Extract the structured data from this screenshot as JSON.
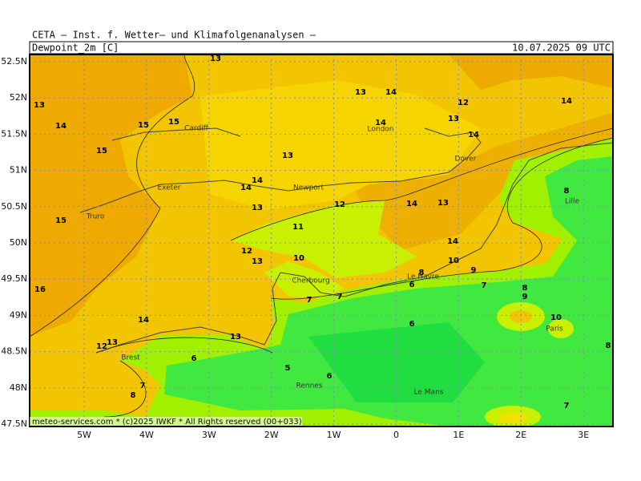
{
  "header": {
    "title": "CETA — Inst. f. Wetter— und Klimafolgenanalysen —",
    "variable": "Dewpoint_2m [C]",
    "valid_time": "10.07.2025 09 UTC"
  },
  "footer": "meteo-services.com * (c)2025 IWKF * All Rights reserved (00+033)",
  "map": {
    "lat_labels": [
      "52.5N",
      "52N",
      "51.5N",
      "51N",
      "50.5N",
      "50N",
      "49.5N",
      "49N",
      "48.5N",
      "48N",
      "47.5N"
    ],
    "lon_labels": [
      "5W",
      "4W",
      "3W",
      "2W",
      "1W",
      "0",
      "1E",
      "2E",
      "3E"
    ],
    "places": [
      "Cardiff",
      "London",
      "Dover",
      "Exeter",
      "Newport",
      "Truro",
      "Lille",
      "Cherbourg",
      "Le Havre",
      "Paris",
      "Brest",
      "Rennes",
      "Le Mans"
    ],
    "contour_labels": [
      13,
      13,
      14,
      15,
      15,
      13,
      14,
      12,
      13,
      14,
      14,
      14,
      15,
      13,
      14,
      14,
      13,
      12,
      14,
      13,
      15,
      11,
      14,
      12,
      13,
      10,
      10,
      9,
      16,
      8,
      6,
      7,
      8,
      9,
      7,
      7,
      14,
      10,
      6,
      13,
      12,
      13,
      6,
      5,
      6,
      7,
      8,
      7,
      8,
      8
    ]
  }
}
